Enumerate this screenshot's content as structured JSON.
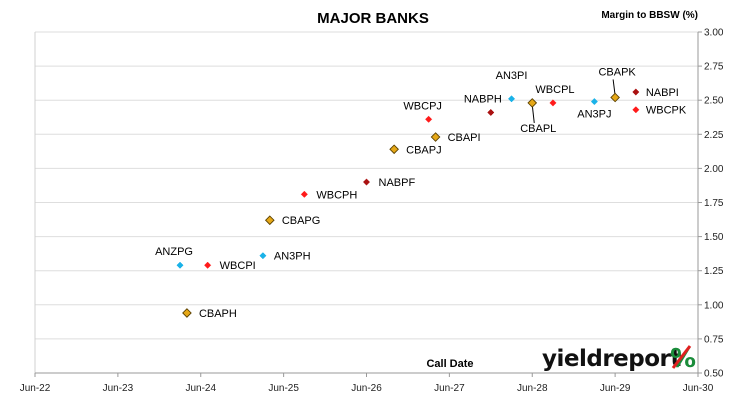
{
  "chart_data": {
    "type": "scatter",
    "title": "MAJOR BANKS",
    "ylabel": "Margin to BBSW (%)",
    "xlabel": "Call Date",
    "xlim": [
      "Jun-22",
      "Jun-30"
    ],
    "x_ticks": [
      "Jun-22",
      "Jun-23",
      "Jun-24",
      "Jun-25",
      "Jun-26",
      "Jun-27",
      "Jun-28",
      "Jun-29",
      "Jun-30"
    ],
    "ylim": [
      0.5,
      3.0
    ],
    "y_ticks": [
      "0.50",
      "0.75",
      "1.00",
      "1.25",
      "1.50",
      "1.75",
      "2.00",
      "2.25",
      "2.50",
      "2.75",
      "3.00"
    ],
    "grid": "horizontal",
    "series_colors": {
      "ANZ": "#1ab2e8",
      "WBC": "#ff1a1a",
      "NAB": "#aa1111",
      "CBA": "#e6a817"
    },
    "points": [
      {
        "label": "ANZPG",
        "issuer": "ANZ",
        "date": "2024-03",
        "y": 1.29
      },
      {
        "label": "CBAPH",
        "issuer": "CBA",
        "date": "2024-04",
        "y": 0.94
      },
      {
        "label": "WBCPI",
        "issuer": "WBC",
        "date": "2024-07",
        "y": 1.29
      },
      {
        "label": "AN3PH",
        "issuer": "ANZ",
        "date": "2025-03",
        "y": 1.36
      },
      {
        "label": "CBAPG",
        "issuer": "CBA",
        "date": "2025-04",
        "y": 1.62
      },
      {
        "label": "WBCPH",
        "issuer": "WBC",
        "date": "2025-09",
        "y": 1.81
      },
      {
        "label": "NABPF",
        "issuer": "NAB",
        "date": "2026-06",
        "y": 1.9
      },
      {
        "label": "CBAPJ",
        "issuer": "CBA",
        "date": "2026-10",
        "y": 2.14
      },
      {
        "label": "WBCPJ",
        "issuer": "WBC",
        "date": "2027-03",
        "y": 2.36
      },
      {
        "label": "CBAPI",
        "issuer": "CBA",
        "date": "2027-04",
        "y": 2.23
      },
      {
        "label": "NABPH",
        "issuer": "NAB",
        "date": "2027-12",
        "y": 2.41
      },
      {
        "label": "AN3PI",
        "issuer": "ANZ",
        "date": "2028-03",
        "y": 2.51
      },
      {
        "label": "CBAPL",
        "issuer": "CBA",
        "date": "2028-06",
        "y": 2.48
      },
      {
        "label": "WBCPL",
        "issuer": "WBC",
        "date": "2028-09",
        "y": 2.48
      },
      {
        "label": "AN3PJ",
        "issuer": "ANZ",
        "date": "2029-03",
        "y": 2.49
      },
      {
        "label": "CBAPK",
        "issuer": "CBA",
        "date": "2029-06",
        "y": 2.52
      },
      {
        "label": "NABPI",
        "issuer": "NAB",
        "date": "2029-09",
        "y": 2.56
      },
      {
        "label": "WBCPK",
        "issuer": "WBC",
        "date": "2029-09",
        "y": 2.43
      }
    ]
  },
  "branding": {
    "logo_text": "yieldreport",
    "logo_symbol": "%"
  }
}
